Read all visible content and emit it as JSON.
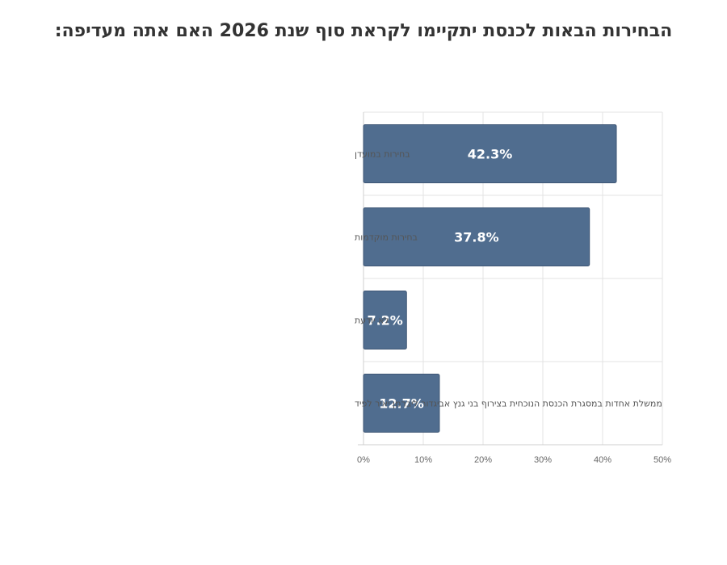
{
  "chart_data": {
    "type": "bar",
    "orientation": "horizontal",
    "title": "הבחירות הבאות לכנסת יתקיימו לקראת סוף שנת 2026  האם אתה מעדיפה:",
    "categories": [
      "בחירות במועדן",
      "בחירות מוקדמות",
      "לא יודעת",
      "ממשלת אחדות במסגרת הכנסת הנוכחית בצירוף בני גנץ אביגדור ליברמן יאיר לפיד"
    ],
    "values": [
      42.3,
      37.8,
      7.2,
      12.7
    ],
    "data_labels": [
      "42.3%",
      "37.8%",
      "7.2%",
      "12.7%"
    ],
    "xlim": [
      0,
      50
    ],
    "xticks": [
      "0%",
      "10%",
      "20%",
      "30%",
      "40%",
      "50%"
    ],
    "xlabel": "",
    "ylabel": "",
    "grid": true,
    "legend": "none",
    "bar_color": "#506d8f"
  }
}
